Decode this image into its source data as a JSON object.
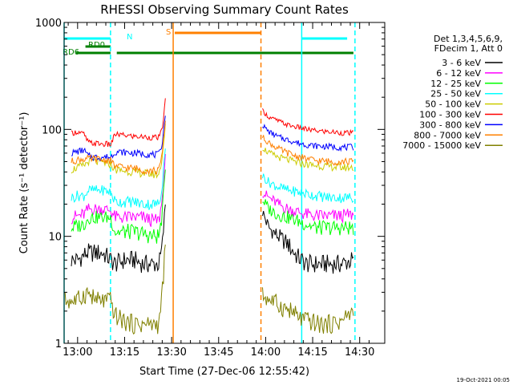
{
  "chart_data": {
    "type": "line",
    "title": "RHESSI Observing Summary Count Rates",
    "xlabel": "Start Time (27-Dec-06 12:55:42)",
    "ylabel": "Count Rate (s⁻¹ detector⁻¹)",
    "x_ticks": [
      "13:00",
      "13:15",
      "13:30",
      "13:45",
      "14:00",
      "14:15",
      "14:30"
    ],
    "x_range_min": [
      -4.3,
      98
    ],
    "x_ticks_min": [
      0,
      15,
      30,
      45,
      60,
      75,
      90
    ],
    "y_ticks": [
      "1",
      "10",
      "100",
      "1000"
    ],
    "ylim": [
      1,
      1000
    ],
    "y_scale": "log",
    "legend": {
      "header": [
        "Det 1,3,4,5,6,9,",
        "FDecim 1, Att 0"
      ],
      "placement": "right",
      "entries": [
        {
          "label": "3 - 6 keV",
          "color": "#000000"
        },
        {
          "label": "6 - 12 keV",
          "color": "#ff00ff"
        },
        {
          "label": "12 - 25 keV",
          "color": "#00ff00"
        },
        {
          "label": "25 - 50 keV",
          "color": "#00ffff"
        },
        {
          "label": "50 - 100 keV",
          "color": "#cccc00"
        },
        {
          "label": "100 - 300 keV",
          "color": "#ff0000"
        },
        {
          "label": "300 - 800 keV",
          "color": "#0000ff"
        },
        {
          "label": "800 - 7000 keV",
          "color": "#ff8000"
        },
        {
          "label": "7000 - 15000 keV",
          "color": "#808000"
        }
      ]
    },
    "flags": [
      {
        "label": "N",
        "color": "#00ffff",
        "segments": [
          [
            -4.3,
            10.5
          ],
          [
            71.5,
            86
          ]
        ]
      },
      {
        "label": "S",
        "color": "#ff8000",
        "segments": [
          [
            31,
            58.5
          ]
        ]
      },
      {
        "label": "RD0",
        "color": "#008000",
        "segments": [
          [
            2.5,
            10.5
          ]
        ]
      },
      {
        "label": "RD6",
        "color": "#008000",
        "segments": [
          [
            -0.5,
            10.5
          ],
          [
            12.5,
            88
          ]
        ]
      }
    ],
    "vertical_markers": [
      {
        "color": "#00ffff",
        "style": "solid",
        "x": [
          -4.3,
          71.5
        ]
      },
      {
        "color": "#00ffff",
        "style": "dashed",
        "x": [
          10.5,
          88.5
        ]
      },
      {
        "color": "#ff8000",
        "style": "solid",
        "x": [
          30.5
        ]
      },
      {
        "color": "#ff8000",
        "style": "dashed",
        "x": [
          58.5
        ]
      }
    ],
    "series": [
      {
        "name": "3 - 6 keV",
        "color": "#000000",
        "segments": [
          {
            "x": [
              -2,
              0,
              3,
              5,
              8,
              10.5,
              12,
              15,
              18,
              21,
              24,
              26,
              27,
              28
            ],
            "y": [
              6,
              6,
              7,
              7,
              7,
              6,
              5.5,
              6,
              6,
              5.5,
              5.5,
              5.5,
              8,
              20
            ]
          },
          {
            "x": [
              59,
              61,
              64,
              67,
              70,
              73,
              76,
              80,
              84,
              88
            ],
            "y": [
              17,
              12,
              10,
              8.5,
              6.5,
              5.5,
              5.5,
              5.5,
              5.5,
              6
            ]
          }
        ]
      },
      {
        "name": "6 - 12 keV",
        "color": "#ff00ff",
        "segments": [
          {
            "x": [
              -2,
              0,
              2,
              3.5,
              5,
              8,
              10.5,
              12,
              15,
              18,
              21,
              24,
              26,
              27,
              28
            ],
            "y": [
              15,
              15.5,
              16,
              18,
              18,
              18,
              17.5,
              15,
              15,
              15,
              15,
              14,
              14,
              22,
              55
            ]
          },
          {
            "x": [
              59,
              61,
              64,
              67,
              70,
              73,
              76,
              80,
              84,
              88
            ],
            "y": [
              26,
              23,
              20,
              18,
              17,
              16,
              15.5,
              15.5,
              15.5,
              16
            ]
          }
        ]
      },
      {
        "name": "12 - 25 keV",
        "color": "#00ff00",
        "segments": [
          {
            "x": [
              -2,
              0,
              2,
              3.5,
              5,
              8,
              10.5,
              12,
              15,
              18,
              21,
              24,
              26,
              27,
              28
            ],
            "y": [
              12,
              12.5,
              13,
              15,
              15,
              15,
              15,
              11,
              11,
              11,
              10.5,
              10,
              10,
              16,
              45
            ]
          },
          {
            "x": [
              59,
              61,
              64,
              67,
              70,
              73,
              76,
              80,
              84,
              88
            ],
            "y": [
              22,
              18,
              16,
              15,
              14,
              13,
              12,
              12,
              12,
              12
            ]
          }
        ]
      },
      {
        "name": "25 - 50 keV",
        "color": "#00ffff",
        "segments": [
          {
            "x": [
              -2,
              0,
              2,
              3.5,
              5,
              8,
              10.5,
              12,
              15,
              18,
              21,
              24,
              26,
              27,
              28
            ],
            "y": [
              23,
              24,
              24,
              27,
              27,
              27,
              26,
              21,
              21,
              21,
              20,
              20,
              20,
              30,
              70
            ]
          },
          {
            "x": [
              59,
              61,
              64,
              67,
              70,
              73,
              76,
              80,
              84,
              88
            ],
            "y": [
              37,
              32,
              29,
              27,
              26,
              25,
              24,
              23,
              23,
              23
            ]
          }
        ]
      },
      {
        "name": "50 - 100 keV",
        "color": "#cccc00",
        "segments": [
          {
            "x": [
              -2,
              0,
              2,
              3.5,
              5,
              8,
              10.5,
              12,
              15,
              18,
              21,
              24,
              26,
              27,
              28
            ],
            "y": [
              42,
              44,
              46,
              50,
              50,
              49,
              47,
              42,
              41,
              40,
              39,
              38,
              38,
              55,
              110
            ]
          },
          {
            "x": [
              59,
              61,
              64,
              67,
              70,
              73,
              76,
              80,
              84,
              88
            ],
            "y": [
              68,
              60,
              55,
              52,
              49,
              47,
              46,
              45,
              44,
              44
            ]
          }
        ]
      },
      {
        "name": "100 - 300 keV",
        "color": "#ff0000",
        "segments": [
          {
            "x": [
              -2,
              0,
              2,
              3.5,
              5,
              8,
              10.5,
              12,
              15,
              18,
              21,
              24,
              26,
              27,
              28
            ],
            "y": [
              92,
              95,
              90,
              75,
              74,
              73,
              72,
              90,
              88,
              86,
              85,
              84,
              84,
              100,
              190
            ]
          },
          {
            "x": [
              59,
              61,
              64,
              67,
              70,
              73,
              76,
              80,
              84,
              88
            ],
            "y": [
              150,
              130,
              120,
              110,
              105,
              100,
              97,
              95,
              93,
              92
            ]
          }
        ]
      },
      {
        "name": "300 - 800 keV",
        "color": "#0000ff",
        "segments": [
          {
            "x": [
              -2,
              0,
              2,
              3.5,
              5,
              8,
              10.5,
              12,
              15,
              18,
              21,
              24,
              26,
              27,
              28
            ],
            "y": [
              60,
              62,
              64,
              56,
              55,
              55,
              55,
              62,
              61,
              60,
              59,
              58,
              58,
              75,
              140
            ]
          },
          {
            "x": [
              59,
              61,
              64,
              67,
              70,
              73,
              76,
              80,
              84,
              88
            ],
            "y": [
              110,
              95,
              85,
              80,
              75,
              72,
              70,
              69,
              68,
              68
            ]
          }
        ]
      },
      {
        "name": "800 - 7000 keV",
        "color": "#ff8000",
        "segments": [
          {
            "x": [
              -2,
              0,
              2,
              3.5,
              5,
              8,
              10.5,
              12,
              15,
              18,
              21,
              24,
              26,
              27,
              28
            ],
            "y": [
              50,
              52,
              53,
              53,
              53,
              52,
              51,
              45,
              44,
              43,
              42,
              41,
              41,
              60,
              120
            ]
          },
          {
            "x": [
              59,
              61,
              64,
              67,
              70,
              73,
              76,
              80,
              84,
              88
            ],
            "y": [
              85,
              75,
              66,
              60,
              56,
              53,
              51,
              50,
              50,
              50
            ]
          }
        ]
      },
      {
        "name": "7000 - 15000 keV",
        "color": "#808000",
        "segments": [
          {
            "x": [
              -4,
              -2,
              0,
              3,
              6,
              9,
              10.5,
              12,
              15,
              18,
              21,
              24,
              26,
              27,
              28
            ],
            "y": [
              2.5,
              2.5,
              2.5,
              3,
              2.5,
              2.5,
              2.5,
              1.8,
              1.6,
              1.5,
              1.5,
              1.5,
              1.5,
              3,
              8
            ]
          },
          {
            "x": [
              59,
              62,
              65,
              68,
              71,
              74,
              77,
              80,
              84,
              88
            ],
            "y": [
              2.8,
              2.5,
              2.2,
              2,
              1.7,
              1.6,
              1.5,
              1.5,
              1.6,
              2
            ]
          }
        ]
      }
    ]
  },
  "footer": {
    "timestamp": "19-Oct-2021 00:05"
  }
}
